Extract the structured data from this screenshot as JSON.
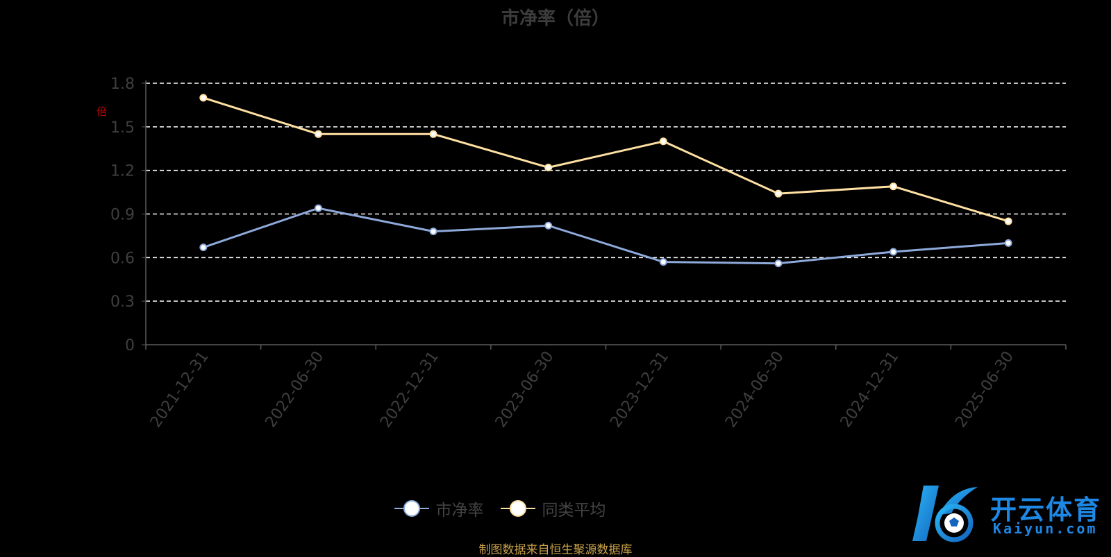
{
  "title": "市净率（倍）",
  "y_unit_label": "倍",
  "source_note": "制图数据来自恒生聚源数据库",
  "legend": [
    {
      "label": "市净率",
      "color": "#8eaadb"
    },
    {
      "label": "同类平均",
      "color": "#ffe0a3"
    }
  ],
  "watermark": {
    "cn": "开云体育",
    "en": "Kaiyun.com"
  },
  "colors": {
    "background": "#000000",
    "axis": "#5a5a5a",
    "grid": "#ffffff",
    "tick_label": "#3f3f3f",
    "series_pb": "#8eaadb",
    "series_avg": "#ffe0a3"
  },
  "chart_data": {
    "type": "line",
    "title": "市净率（倍）",
    "categories": [
      "2021-12-31",
      "2022-06-30",
      "2022-12-31",
      "2023-06-30",
      "2023-12-31",
      "2024-06-30",
      "2024-12-31",
      "2025-06-30"
    ],
    "series": [
      {
        "name": "市净率",
        "values": [
          0.67,
          0.94,
          0.78,
          0.82,
          0.57,
          0.56,
          0.64,
          0.7
        ]
      },
      {
        "name": "同类平均",
        "values": [
          1.7,
          1.45,
          1.45,
          1.22,
          1.4,
          1.04,
          1.09,
          0.85
        ]
      }
    ],
    "yticks": [
      "0",
      "0.3",
      "0.6",
      "0.9",
      "1.2",
      "1.5",
      "1.8"
    ],
    "ylim": [
      0,
      1.8
    ],
    "ylabel": "倍",
    "xlabel": "",
    "grid": true,
    "legend_position": "bottom"
  }
}
